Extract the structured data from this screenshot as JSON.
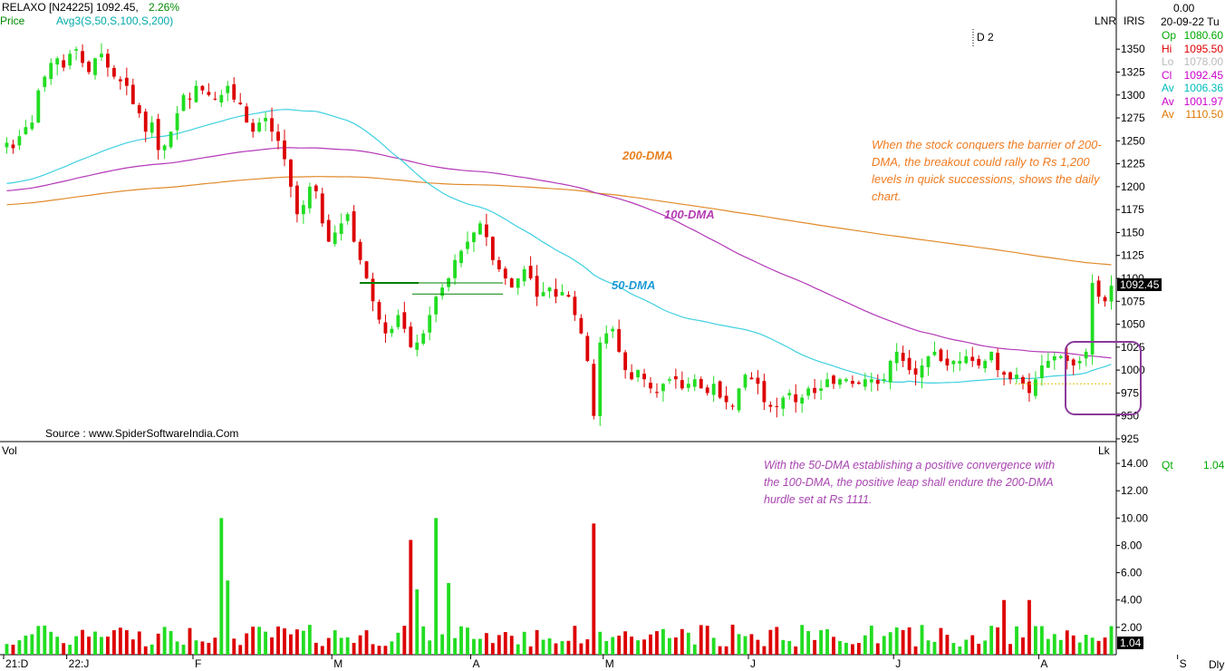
{
  "header": {
    "ticker": "RELAXO [N24225] 1092.45,",
    "change_pct": "2.26%",
    "price_label": "Price",
    "avg_label": "Avg3(S,50,S,100,S,200)",
    "d_label": "D 2",
    "lnr": "LNR",
    "iris": "IRIS"
  },
  "panel": {
    "top_value": "0.00",
    "date": "20-09-22 Tu",
    "rows": [
      {
        "k": "Op",
        "v": "1080.60",
        "color": "#00aa00"
      },
      {
        "k": "Hi",
        "v": "1095.50",
        "color": "#dd0000"
      },
      {
        "k": "Lo",
        "v": "1078.00",
        "color": "#bbbbbb"
      },
      {
        "k": "Cl",
        "v": "1092.45",
        "color": "#cc00cc"
      },
      {
        "k": "Av",
        "v": "1006.36",
        "color": "#00bbbb"
      },
      {
        "k": "Av",
        "v": "1001.97",
        "color": "#cc00cc"
      },
      {
        "k": "Av",
        "v": "1110.50",
        "color": "#dd7700"
      }
    ]
  },
  "source": "Source : www.SpiderSoftwareIndia.Com",
  "annotations": {
    "note1": "When the stock conquers the barrier of 200-DMA, the breakout could rally to Rs 1,200 levels in quick successions, shows the daily chart.",
    "note2": "With the 50-DMA establishing a positive convergence with the 100-DMA, the positive leap shall endure the 200-DMA hurdle set at Rs 1111.",
    "dma200": "200-DMA",
    "dma100": "100-DMA",
    "dma50": "50-DMA"
  },
  "price_tag": "1092.45",
  "volume": {
    "label": "Vol",
    "unit": "Lk",
    "qt_label": "Qt",
    "qt_value": "1.04",
    "tag": "1.04",
    "frequency": "Dly"
  },
  "colors": {
    "up": "#22dd22",
    "down": "#dd0000",
    "ma50": "#3fd0e0",
    "ma100": "#b338b8",
    "ma200": "#e08a2a",
    "box": "#8a3a9a"
  },
  "chart_data": {
    "type": "candlestick",
    "price_axis_ticks": [
      1350,
      1325,
      1300,
      1275,
      1250,
      1225,
      1200,
      1175,
      1150,
      1125,
      1100,
      1075,
      1050,
      1025,
      1000,
      975,
      950,
      925
    ],
    "price_ylim": [
      922,
      1368
    ],
    "volume_axis_ticks": [
      "2.00",
      "4.00",
      "6.00",
      "8.00",
      "10.00",
      "12.00",
      "14.00"
    ],
    "volume_ylim": [
      0,
      15
    ],
    "x_labels": [
      {
        "label": "21:D",
        "idx": 0
      },
      {
        "label": "22:J",
        "idx": 10
      },
      {
        "label": "F",
        "idx": 30
      },
      {
        "label": "M",
        "idx": 52
      },
      {
        "label": "A",
        "idx": 74
      },
      {
        "label": "M",
        "idx": 95
      },
      {
        "label": "J",
        "idx": 118
      },
      {
        "label": "J",
        "idx": 141
      },
      {
        "label": "A",
        "idx": 164
      },
      {
        "label": "S",
        "idx": 186
      }
    ],
    "close": [
      1248,
      1242,
      1255,
      1265,
      1270,
      1305,
      1320,
      1335,
      1340,
      1330,
      1345,
      1350,
      1335,
      1325,
      1340,
      1345,
      1330,
      1320,
      1315,
      1310,
      1290,
      1280,
      1260,
      1270,
      1240,
      1245,
      1260,
      1280,
      1300,
      1295,
      1310,
      1305,
      1300,
      1295,
      1300,
      1310,
      1295,
      1290,
      1270,
      1260,
      1270,
      1275,
      1260,
      1250,
      1230,
      1200,
      1170,
      1180,
      1200,
      1195,
      1160,
      1140,
      1150,
      1160,
      1170,
      1140,
      1120,
      1100,
      1075,
      1055,
      1040,
      1045,
      1060,
      1045,
      1025,
      1030,
      1040,
      1060,
      1080,
      1090,
      1100,
      1120,
      1130,
      1140,
      1150,
      1160,
      1145,
      1120,
      1110,
      1100,
      1090,
      1100,
      1110,
      1100,
      1080,
      1085,
      1090,
      1080,
      1085,
      1080,
      1060,
      1040,
      1010,
      950,
      1030,
      1040,
      1045,
      1020,
      1000,
      990,
      1000,
      990,
      980,
      975,
      985,
      990,
      990,
      980,
      985,
      990,
      980,
      975,
      985,
      970,
      965,
      960,
      980,
      995,
      990,
      985,
      965,
      960,
      960,
      970,
      975,
      965,
      970,
      980,
      975,
      980,
      990,
      985,
      990,
      990,
      985,
      985,
      990,
      990,
      985,
      990,
      1010,
      1020,
      1010,
      1000,
      995,
      1005,
      1015,
      1020,
      1010,
      1005,
      1010,
      1010,
      1015,
      1010,
      1005,
      1010,
      1020,
      1000,
      995,
      990,
      995,
      985,
      975,
      990,
      1005,
      1010,
      1015,
      1015,
      1010,
      1005,
      1010,
      1020,
      1095,
      1080,
      1075,
      1092
    ]
  }
}
